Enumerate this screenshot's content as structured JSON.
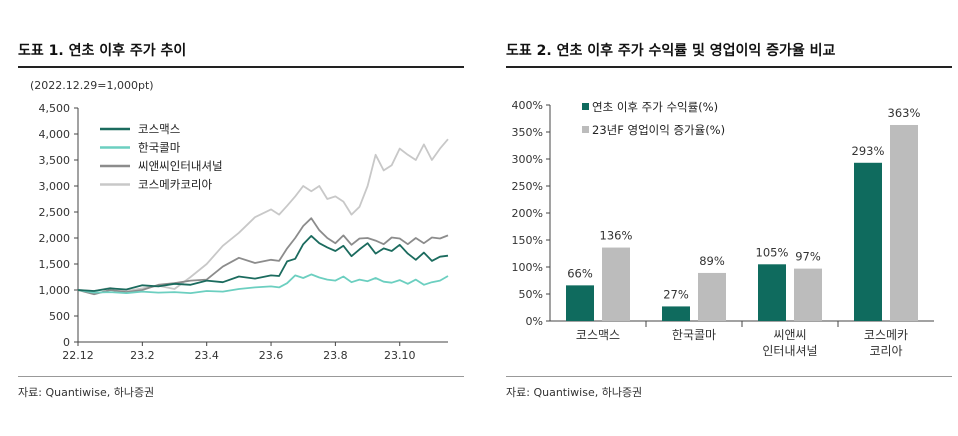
{
  "left": {
    "title": "도표 1. 연초 이후 주가 추이",
    "subnote": "(2022.12.29=1,000pt)",
    "source": "자료: Quantiwise, 하나증권"
  },
  "right": {
    "title": "도표 2. 연초 이후 주가 수익률 및 영업이익 증가율 비교",
    "source": "자료: Quantiwise, 하나증권"
  },
  "colors": {
    "cosmax": "#1b6b5e",
    "kolmar": "#6ccfc0",
    "cnc": "#8c8c8c",
    "cosmecca": "#c8c8c8",
    "bar_return": "#0f6b5e",
    "bar_profit": "#bcbcbc"
  },
  "chart_data": [
    {
      "type": "line",
      "title": "",
      "ylim": [
        0,
        4500
      ],
      "yticks": [
        0,
        500,
        1000,
        1500,
        2000,
        2500,
        3000,
        3500,
        4000,
        4500
      ],
      "ytick_labels": [
        "0",
        "500",
        "1,000",
        "1,500",
        "2,000",
        "2,500",
        "3,000",
        "3,500",
        "4,000",
        "4,500"
      ],
      "xlim": [
        0,
        11.5
      ],
      "xticks": [
        0,
        2,
        4,
        6,
        8,
        10
      ],
      "xtick_labels": [
        "22.12",
        "23.2",
        "23.4",
        "23.6",
        "23.8",
        "23.10"
      ],
      "legend": "top-left",
      "series": [
        {
          "name": "코스맥스",
          "color_key": "cosmax",
          "x": [
            0,
            0.5,
            1,
            1.5,
            2,
            2.5,
            3,
            3.5,
            4,
            4.5,
            5,
            5.5,
            6,
            6.25,
            6.5,
            6.75,
            7,
            7.25,
            7.5,
            7.75,
            8,
            8.25,
            8.5,
            8.75,
            9,
            9.25,
            9.5,
            9.75,
            10,
            10.25,
            10.5,
            10.75,
            11,
            11.25,
            11.5
          ],
          "y": [
            1000,
            980,
            1030,
            1010,
            1090,
            1070,
            1120,
            1100,
            1180,
            1150,
            1260,
            1220,
            1280,
            1270,
            1550,
            1600,
            1880,
            2040,
            1900,
            1820,
            1750,
            1850,
            1650,
            1780,
            1900,
            1700,
            1800,
            1750,
            1870,
            1700,
            1580,
            1720,
            1560,
            1640,
            1660
          ]
        },
        {
          "name": "한국콜마",
          "color_key": "kolmar",
          "x": [
            0,
            0.5,
            1,
            1.5,
            2,
            2.5,
            3,
            3.5,
            4,
            4.5,
            5,
            5.5,
            6,
            6.25,
            6.5,
            6.75,
            7,
            7.25,
            7.5,
            7.75,
            8,
            8.25,
            8.5,
            8.75,
            9,
            9.25,
            9.5,
            9.75,
            10,
            10.25,
            10.5,
            10.75,
            11,
            11.25,
            11.5
          ],
          "y": [
            1000,
            950,
            960,
            940,
            970,
            950,
            960,
            940,
            980,
            970,
            1020,
            1050,
            1070,
            1050,
            1130,
            1280,
            1230,
            1300,
            1240,
            1200,
            1180,
            1260,
            1150,
            1200,
            1170,
            1230,
            1160,
            1140,
            1190,
            1120,
            1200,
            1100,
            1150,
            1180,
            1270
          ]
        },
        {
          "name": "씨앤씨인터내셔널",
          "color_key": "cnc",
          "x": [
            0,
            0.5,
            1,
            1.5,
            2,
            2.5,
            3,
            3.5,
            4,
            4.5,
            5,
            5.5,
            6,
            6.25,
            6.5,
            6.75,
            7,
            7.25,
            7.5,
            7.75,
            8,
            8.25,
            8.5,
            8.75,
            9,
            9.25,
            9.5,
            9.75,
            10,
            10.25,
            10.5,
            10.75,
            11,
            11.25,
            11.5
          ],
          "y": [
            1000,
            920,
            1000,
            960,
            1000,
            1100,
            1130,
            1180,
            1200,
            1450,
            1620,
            1520,
            1580,
            1560,
            1800,
            2000,
            2230,
            2380,
            2150,
            2000,
            1900,
            2050,
            1870,
            1990,
            2000,
            1950,
            1880,
            2010,
            1990,
            1880,
            2000,
            1900,
            2010,
            1990,
            2050
          ]
        },
        {
          "name": "코스메카코리아",
          "color_key": "cosmecca",
          "x": [
            0,
            0.5,
            1,
            1.5,
            2,
            2.5,
            3,
            3.5,
            4,
            4.5,
            5,
            5.5,
            6,
            6.25,
            6.5,
            6.75,
            7,
            7.25,
            7.5,
            7.75,
            8,
            8.25,
            8.5,
            8.75,
            9,
            9.25,
            9.5,
            9.75,
            10,
            10.25,
            10.5,
            10.75,
            11,
            11.25,
            11.5
          ],
          "y": [
            1000,
            980,
            1040,
            980,
            1030,
            1080,
            1020,
            1250,
            1500,
            1850,
            2100,
            2400,
            2550,
            2450,
            2620,
            2800,
            3000,
            2900,
            3000,
            2750,
            2800,
            2700,
            2450,
            2600,
            3000,
            3600,
            3300,
            3400,
            3720,
            3600,
            3500,
            3800,
            3500,
            3720,
            3900
          ]
        }
      ]
    },
    {
      "type": "bar",
      "title": "",
      "ylim": [
        0,
        400
      ],
      "yticks": [
        0,
        50,
        100,
        150,
        200,
        250,
        300,
        350,
        400
      ],
      "ytick_labels": [
        "0%",
        "50%",
        "100%",
        "150%",
        "200%",
        "250%",
        "300%",
        "350%",
        "400%"
      ],
      "legend": "top-left",
      "categories": [
        "코스맥스",
        "한국콜마",
        "씨앤씨\n인터내셔널",
        "코스메카\n코리아"
      ],
      "category_lines": [
        [
          "코스맥스"
        ],
        [
          "한국콜마"
        ],
        [
          "씨앤씨",
          "인터내셔널"
        ],
        [
          "코스메카",
          "코리아"
        ]
      ],
      "series": [
        {
          "name": "연초 이후 주가 수익률(%)",
          "color_key": "bar_return",
          "values": [
            66,
            27,
            105,
            293
          ],
          "labels": [
            "66%",
            "27%",
            "105%",
            "293%"
          ]
        },
        {
          "name": "23년F 영업이익 증가율(%)",
          "color_key": "bar_profit",
          "values": [
            136,
            89,
            97,
            363
          ],
          "labels": [
            "136%",
            "89%",
            "97%",
            "363%"
          ]
        }
      ]
    }
  ]
}
